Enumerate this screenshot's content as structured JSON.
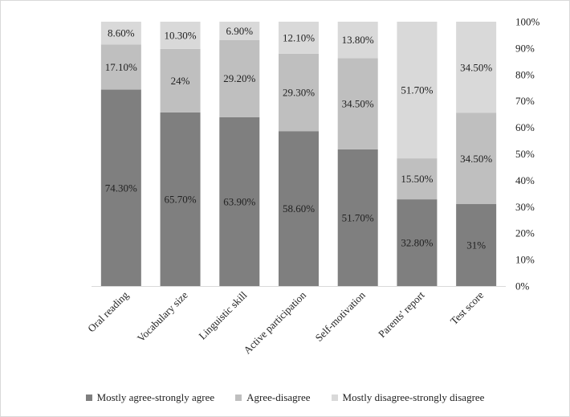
{
  "chart_data": {
    "type": "bar",
    "stacked": true,
    "orientation": "vertical",
    "categories": [
      "Oral reading",
      "Vocabulary size",
      "Linguistic skill",
      "Active participation",
      "Self-motivation",
      "Parents' report",
      "Test score"
    ],
    "series": [
      {
        "name": "Mostly agree-strongly agree",
        "color": "#7f7f7f",
        "values": [
          74.3,
          65.7,
          63.9,
          58.6,
          51.7,
          32.8,
          31
        ],
        "labels": [
          "74.30%",
          "65.70%",
          "63.90%",
          "58.60%",
          "51.70%",
          "32.80%",
          "31%"
        ]
      },
      {
        "name": "Agree-disagree",
        "color": "#bfbfbf",
        "values": [
          17.1,
          24,
          29.2,
          29.3,
          34.5,
          15.5,
          34.5
        ],
        "labels": [
          "17.10%",
          "24%",
          "29.20%",
          "29.30%",
          "34.50%",
          "15.50%",
          "34.50%"
        ]
      },
      {
        "name": "Mostly disagree-strongly disagree",
        "color": "#d9d9d9",
        "values": [
          8.6,
          10.3,
          6.9,
          12.1,
          13.8,
          51.7,
          34.5
        ],
        "labels": [
          "8.60%",
          "10.30%",
          "6.90%",
          "12.10%",
          "13.80%",
          "51.70%",
          "34.50%"
        ]
      }
    ],
    "yaxis": {
      "position": "right",
      "ylim": [
        0,
        100
      ],
      "ticks": [
        "0%",
        "10%",
        "20%",
        "30%",
        "40%",
        "50%",
        "60%",
        "70%",
        "80%",
        "90%",
        "100%"
      ]
    },
    "legend": "bottom",
    "title": "",
    "xlabel": "",
    "ylabel": ""
  }
}
